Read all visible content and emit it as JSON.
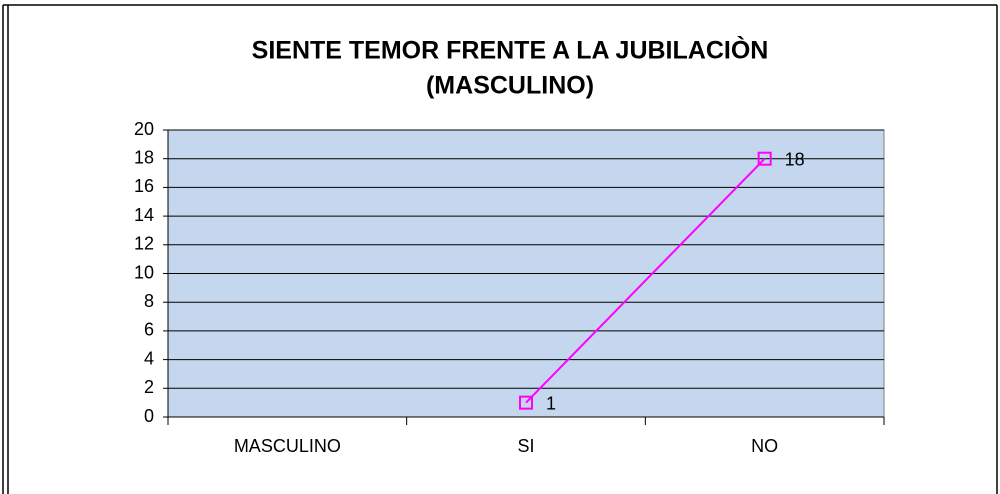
{
  "chart_data": {
    "type": "line",
    "title": [
      "SIENTE TEMOR FRENTE A LA JUBILACIÒN",
      "(MASCULINO)"
    ],
    "categories": [
      "MASCULINO",
      "SI",
      "NO"
    ],
    "series": [
      {
        "name": "MASCULINO",
        "color": "#ff00ff",
        "values": [
          null,
          1,
          18
        ]
      }
    ],
    "ylim": [
      0,
      20
    ],
    "yticks": [
      0,
      2,
      4,
      6,
      8,
      10,
      12,
      14,
      16,
      18,
      20
    ],
    "grid": true,
    "data_labels": true,
    "legend": false
  }
}
